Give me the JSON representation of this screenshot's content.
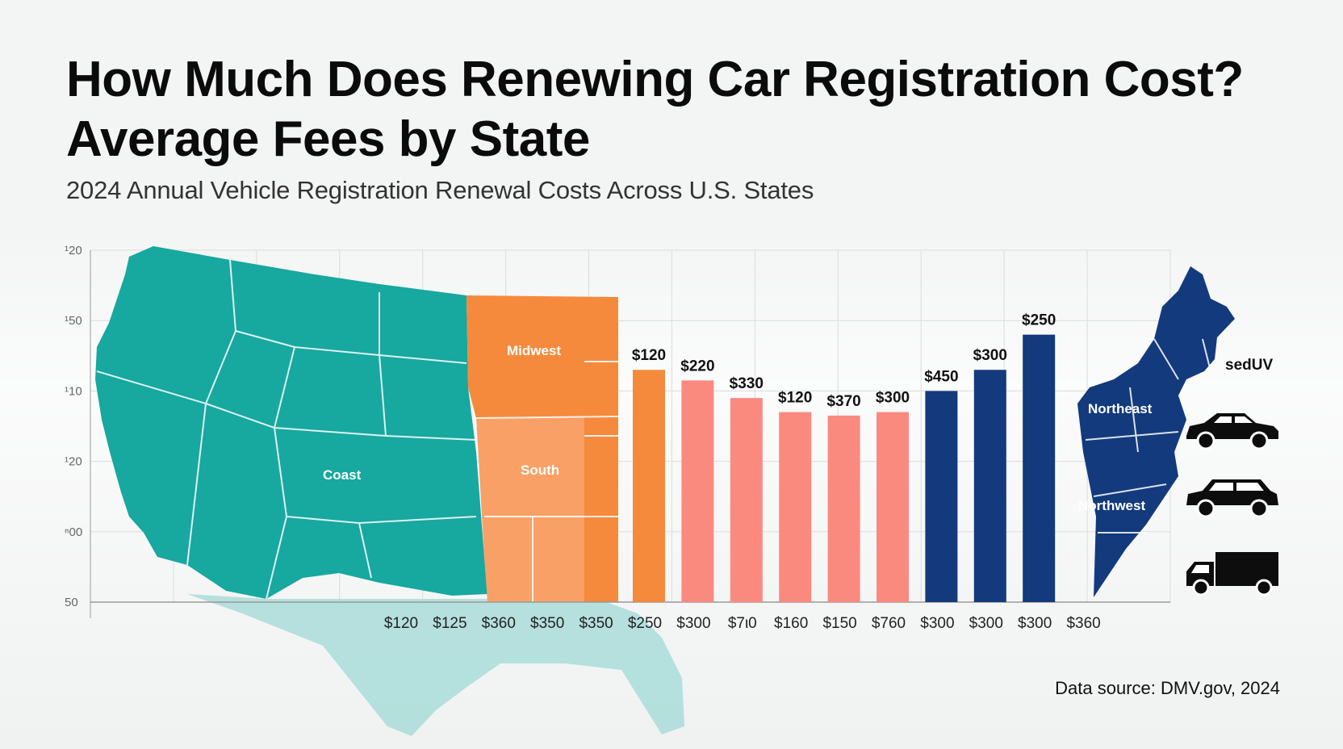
{
  "header": {
    "title_line1": "How Much Does Renewing Car Registration Cost?",
    "title_line2": "Average Fees by State",
    "subtitle": "2024 Annual Vehicle Registration Renewal Costs Across U.S. States"
  },
  "footer": {
    "source": "Data source: DMV.gov, 2024"
  },
  "map_regions": [
    {
      "label": "Coast",
      "color": "#17a89f"
    },
    {
      "label": "Midwest",
      "color": "#f58a3c"
    },
    {
      "label": "South",
      "color": "#f9a066"
    },
    {
      "label": "Northeast",
      "color": "#133a7c"
    },
    {
      "label": "Northwest",
      "color": "#133a7c"
    }
  ],
  "vehicle_types": {
    "label": "sedUV",
    "icons": [
      "car-icon",
      "suv-icon",
      "truck-icon"
    ]
  },
  "chart_data": {
    "type": "bar",
    "y_tick_labels": [
      "50",
      "ⁿ00",
      "¹20",
      "¹10",
      "¹50",
      "¹20"
    ],
    "categories": [
      "$120",
      "$125",
      "$360",
      "$350",
      "$350",
      "$250",
      "$300",
      "$7ι0",
      "$160",
      "$150",
      "$760",
      "$300",
      "$300",
      "$300",
      "$360"
    ],
    "bars": [
      {
        "label": "$120",
        "value": 0.66,
        "color": "#f58a3c"
      },
      {
        "label": "$220",
        "value": 0.63,
        "color": "#fb8a7e"
      },
      {
        "label": "$330",
        "value": 0.58,
        "color": "#fb8a7e"
      },
      {
        "label": "$120",
        "value": 0.54,
        "color": "#fb8a7e"
      },
      {
        "label": "$370",
        "value": 0.53,
        "color": "#fb8a7e"
      },
      {
        "label": "$300",
        "value": 0.54,
        "color": "#fb8a7e"
      },
      {
        "label": "$450",
        "value": 0.6,
        "color": "#133a7c"
      },
      {
        "label": "$300",
        "value": 0.66,
        "color": "#133a7c"
      },
      {
        "label": "$250",
        "value": 0.76,
        "color": "#133a7c"
      }
    ],
    "ylim": [
      0,
      1
    ],
    "grid": true
  }
}
